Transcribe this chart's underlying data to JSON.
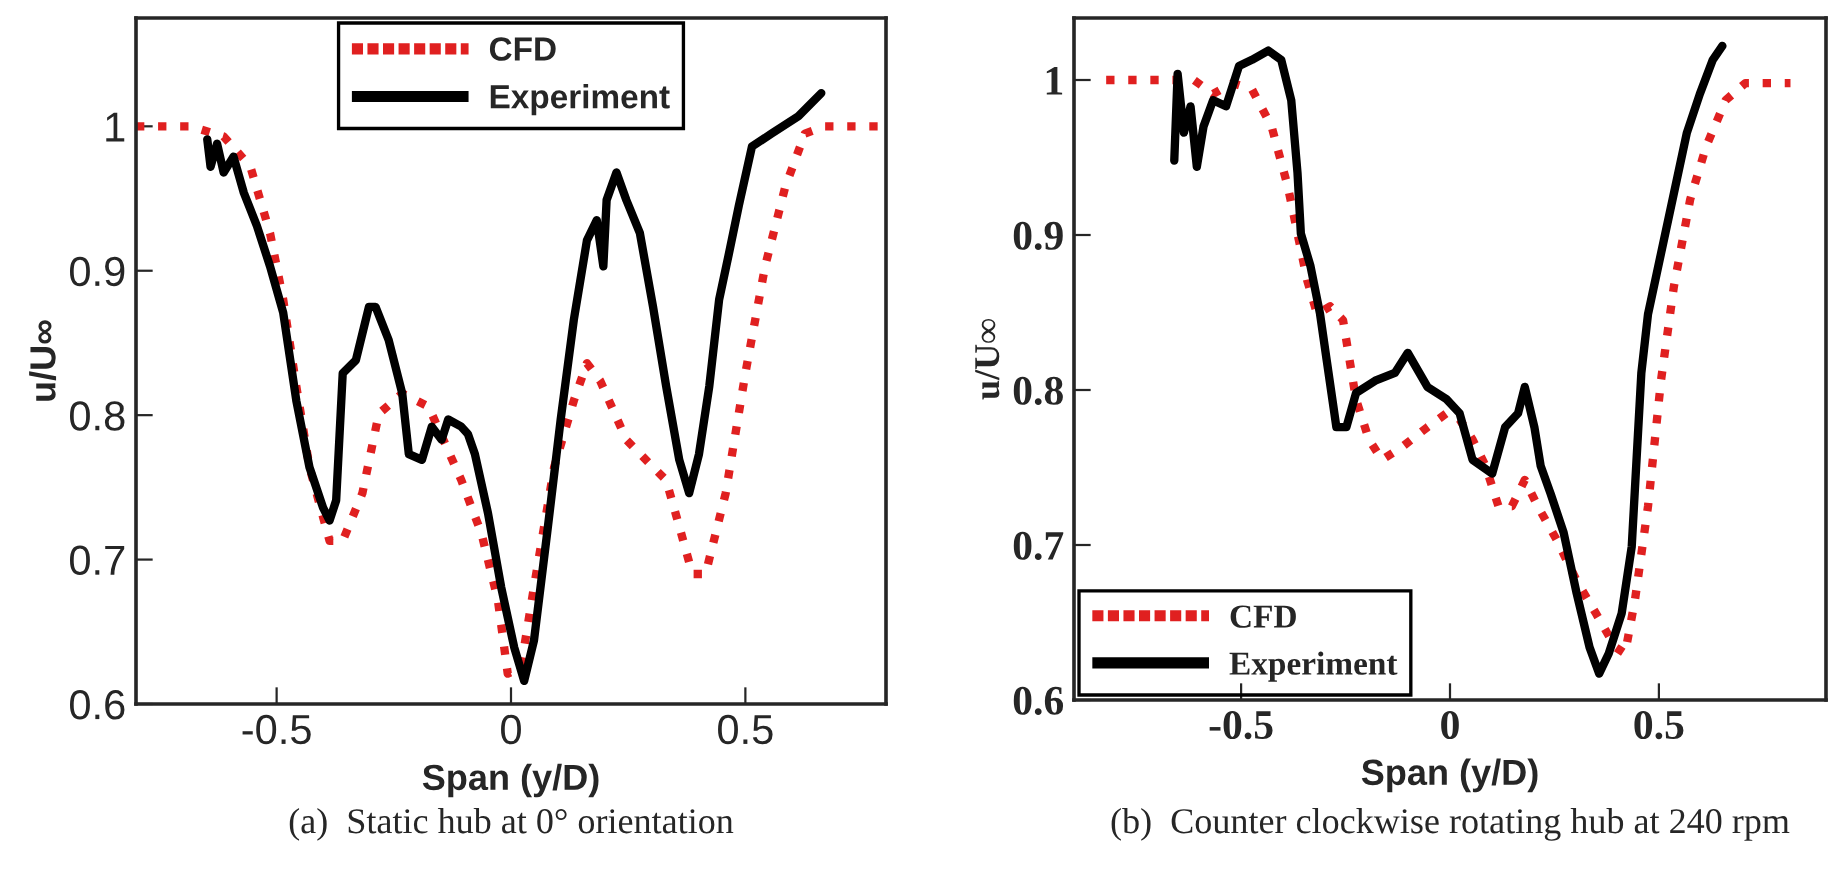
{
  "chart_data": [
    {
      "type": "line",
      "xlabel": "Span (y/D)",
      "ylabel": "u/U∞",
      "xlim": [
        -0.8,
        0.8
      ],
      "xticks": [
        -0.5,
        0,
        0.5
      ],
      "ylim": [
        0.6,
        1.075
      ],
      "yticks": [
        0.6,
        0.7,
        0.8,
        0.9,
        1
      ],
      "grid": false,
      "legend": "top",
      "marker": "none",
      "annotations": [
        "(a)  Static hub at 0° orientation"
      ],
      "series": [
        {
          "name": "CFD",
          "color": "#e02020",
          "line_style": "dotted",
          "x": [
            -0.8,
            -0.683,
            -0.613,
            -0.556,
            -0.514,
            -0.486,
            -0.458,
            -0.43,
            -0.387,
            -0.359,
            -0.317,
            -0.282,
            -0.232,
            -0.176,
            -0.106,
            -0.063,
            -0.028,
            -0.007,
            0.021,
            0.049,
            0.092,
            0.134,
            0.162,
            0.19,
            0.246,
            0.303,
            0.331,
            0.359,
            0.387,
            0.415,
            0.458,
            0.5,
            0.542,
            0.585,
            0.627,
            0.669,
            0.8
          ],
          "values": [
            1,
            1,
            0.993,
            0.972,
            0.926,
            0.88,
            0.82,
            0.764,
            0.713,
            0.713,
            0.746,
            0.801,
            0.815,
            0.806,
            0.755,
            0.718,
            0.672,
            0.621,
            0.625,
            0.681,
            0.764,
            0.81,
            0.836,
            0.824,
            0.783,
            0.764,
            0.755,
            0.723,
            0.69,
            0.69,
            0.746,
            0.829,
            0.903,
            0.958,
            0.995,
            1,
            1
          ]
        },
        {
          "name": "Experiment",
          "color": "#000000",
          "line_style": "solid",
          "x": [
            -0.648,
            -0.641,
            -0.627,
            -0.613,
            -0.592,
            -0.57,
            -0.542,
            -0.514,
            -0.486,
            -0.458,
            -0.43,
            -0.401,
            -0.387,
            -0.373,
            -0.359,
            -0.331,
            -0.303,
            -0.289,
            -0.261,
            -0.232,
            -0.218,
            -0.19,
            -0.169,
            -0.148,
            -0.134,
            -0.106,
            -0.092,
            -0.077,
            -0.049,
            -0.021,
            0.007,
            0.028,
            0.049,
            0.077,
            0.106,
            0.134,
            0.162,
            0.183,
            0.197,
            0.204,
            0.225,
            0.246,
            0.275,
            0.303,
            0.331,
            0.359,
            0.38,
            0.401,
            0.423,
            0.444,
            0.465,
            0.486,
            0.514,
            0.556,
            0.613,
            0.662
          ],
          "values": [
            0.991,
            0.972,
            0.988,
            0.968,
            0.979,
            0.954,
            0.931,
            0.903,
            0.871,
            0.81,
            0.764,
            0.736,
            0.727,
            0.741,
            0.829,
            0.838,
            0.875,
            0.875,
            0.852,
            0.815,
            0.773,
            0.769,
            0.792,
            0.783,
            0.797,
            0.792,
            0.787,
            0.773,
            0.732,
            0.681,
            0.639,
            0.616,
            0.644,
            0.718,
            0.797,
            0.866,
            0.921,
            0.935,
            0.903,
            0.949,
            0.968,
            0.949,
            0.926,
            0.875,
            0.82,
            0.769,
            0.746,
            0.773,
            0.82,
            0.88,
            0.912,
            0.945,
            0.986,
            0.995,
            1.007,
            1.023
          ]
        }
      ]
    },
    {
      "type": "line",
      "xlabel": "Span (y/D)",
      "ylabel": "u/U∞",
      "xlim": [
        -0.9,
        0.9
      ],
      "xticks": [
        -0.5,
        0,
        0.5
      ],
      "ylim": [
        0.6,
        1.04
      ],
      "yticks": [
        0.6,
        0.7,
        0.8,
        0.9,
        1
      ],
      "grid": false,
      "legend": "bottom left",
      "marker": "none",
      "annotations": [
        "(b)  Counter clockwise rotating hub at 240 rpm"
      ],
      "series": [
        {
          "name": "CFD",
          "color": "#e02020",
          "line_style": "dotted",
          "x": [
            -0.823,
            -0.66,
            -0.613,
            -0.567,
            -0.52,
            -0.474,
            -0.427,
            -0.388,
            -0.365,
            -0.342,
            -0.318,
            -0.287,
            -0.256,
            -0.225,
            -0.194,
            -0.163,
            -0.116,
            -0.054,
            -0.008,
            0.023,
            0.054,
            0.085,
            0.116,
            0.148,
            0.179,
            0.21,
            0.256,
            0.303,
            0.349,
            0.396,
            0.419,
            0.443,
            0.474,
            0.505,
            0.536,
            0.575,
            0.613,
            0.66,
            0.707,
            0.815
          ],
          "values": [
            1,
            1,
            1,
            0.991,
            0.998,
            0.994,
            0.97,
            0.931,
            0.901,
            0.871,
            0.849,
            0.854,
            0.845,
            0.794,
            0.768,
            0.755,
            0.763,
            0.776,
            0.785,
            0.781,
            0.768,
            0.751,
            0.725,
            0.725,
            0.742,
            0.725,
            0.703,
            0.677,
            0.656,
            0.634,
            0.63,
            0.665,
            0.725,
            0.806,
            0.867,
            0.923,
            0.957,
            0.987,
            0.998,
            0.998
          ]
        },
        {
          "name": "Experiment",
          "color": "#000000",
          "line_style": "solid",
          "x": [
            -0.66,
            -0.652,
            -0.637,
            -0.621,
            -0.606,
            -0.59,
            -0.567,
            -0.536,
            -0.505,
            -0.474,
            -0.435,
            -0.404,
            -0.38,
            -0.365,
            -0.357,
            -0.334,
            -0.311,
            -0.295,
            -0.272,
            -0.248,
            -0.225,
            -0.179,
            -0.132,
            -0.101,
            -0.054,
            -0.008,
            0.023,
            0.054,
            0.101,
            0.132,
            0.163,
            0.179,
            0.202,
            0.217,
            0.241,
            0.272,
            0.303,
            0.334,
            0.357,
            0.38,
            0.411,
            0.435,
            0.458,
            0.474,
            0.505,
            0.536,
            0.567,
            0.598,
            0.629,
            0.652
          ],
          "values": [
            0.948,
            1.004,
            0.966,
            0.983,
            0.944,
            0.97,
            0.987,
            0.983,
            1.009,
            1.013,
            1.019,
            1.013,
            0.987,
            0.94,
            0.901,
            0.88,
            0.849,
            0.819,
            0.776,
            0.776,
            0.798,
            0.806,
            0.811,
            0.824,
            0.802,
            0.794,
            0.785,
            0.755,
            0.746,
            0.776,
            0.785,
            0.802,
            0.776,
            0.751,
            0.733,
            0.708,
            0.669,
            0.634,
            0.617,
            0.63,
            0.656,
            0.699,
            0.811,
            0.849,
            0.888,
            0.927,
            0.966,
            0.991,
            1.013,
            1.022
          ]
        }
      ]
    }
  ]
}
